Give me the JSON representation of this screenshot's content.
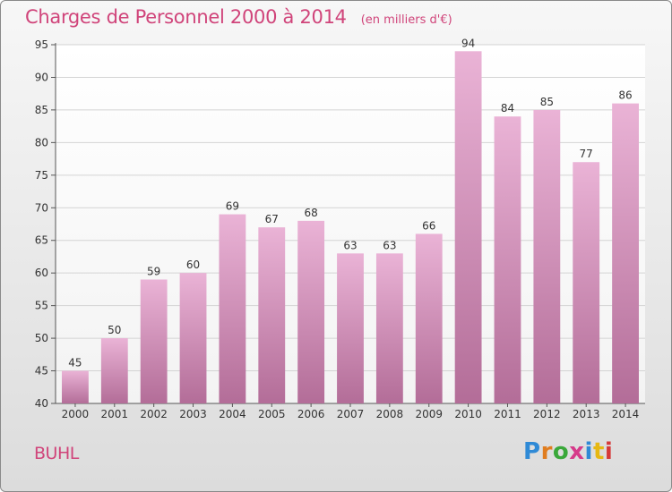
{
  "title": "Charges de Personnel 2000 à 2014",
  "subtitle": "(en milliers d'€)",
  "commune": "BUHL",
  "logo": {
    "text": "Proxiti",
    "letter_colors": [
      "#2f8ad6",
      "#e07d1f",
      "#3aa83a",
      "#d63a8a",
      "#2f8ad6",
      "#e6b814",
      "#d63a3a"
    ]
  },
  "colors": {
    "title": "#d0447a",
    "bar_top": "#eab3d6",
    "bar_bottom": "#b36d98",
    "grid": "#d4d4d4",
    "axis": "#555555",
    "text": "#333333"
  },
  "chart_data": {
    "type": "bar",
    "categories": [
      "2000",
      "2001",
      "2002",
      "2003",
      "2004",
      "2005",
      "2006",
      "2007",
      "2008",
      "2009",
      "2010",
      "2011",
      "2012",
      "2013",
      "2014"
    ],
    "values": [
      45,
      50,
      59,
      60,
      69,
      67,
      68,
      63,
      63,
      66,
      94,
      84,
      85,
      77,
      86
    ],
    "ylim": [
      40,
      95
    ],
    "yticks": [
      40,
      45,
      50,
      55,
      60,
      65,
      70,
      75,
      80,
      85,
      90,
      95
    ],
    "grid": true
  }
}
